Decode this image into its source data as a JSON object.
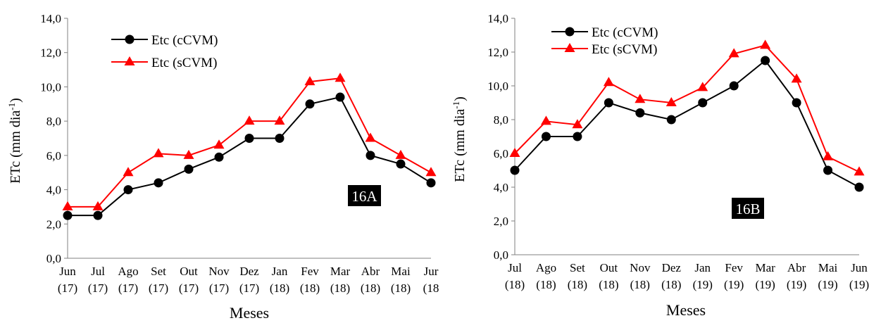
{
  "chart_data": [
    {
      "type": "line",
      "panel_label": "16A",
      "xlabel": "Meses",
      "ylabel_main": "ETc (mm dia",
      "ylabel_sup": "-1",
      "ylabel_close": ")",
      "ylim": [
        0,
        14
      ],
      "yticks": [
        "0,0",
        "2,0",
        "4,0",
        "6,0",
        "8,0",
        "10,0",
        "12,0",
        "14,0"
      ],
      "categories": [
        {
          "month": "Jun",
          "year": "(17)"
        },
        {
          "month": "Jul",
          "year": "(17)"
        },
        {
          "month": "Ago",
          "year": "(17)"
        },
        {
          "month": "Set",
          "year": "(17)"
        },
        {
          "month": "Out",
          "year": "(17)"
        },
        {
          "month": "Nov",
          "year": "(17)"
        },
        {
          "month": "Dez",
          "year": "(17)"
        },
        {
          "month": "Jan",
          "year": "(18)"
        },
        {
          "month": "Fev",
          "year": "(18)"
        },
        {
          "month": "Mar",
          "year": "(18)"
        },
        {
          "month": "Abr",
          "year": "(18)"
        },
        {
          "month": "Mai",
          "year": "(18)"
        },
        {
          "month": "Jur",
          "year": "(18"
        }
      ],
      "series": [
        {
          "name": "Etc (cCVM)",
          "color": "#000000",
          "marker": "circle",
          "values": [
            2.5,
            2.5,
            4.0,
            4.4,
            5.2,
            5.9,
            7.0,
            7.0,
            9.0,
            9.4,
            6.0,
            5.5,
            4.4
          ]
        },
        {
          "name": "Etc (sCVM)",
          "color": "#ff0000",
          "marker": "triangle",
          "values": [
            3.0,
            3.0,
            5.0,
            6.1,
            6.0,
            6.6,
            8.0,
            8.0,
            10.3,
            10.5,
            7.0,
            6.0,
            5.0
          ]
        }
      ],
      "legend_position": "top-left",
      "grid": false
    },
    {
      "type": "line",
      "panel_label": "16B",
      "xlabel": "Meses",
      "ylabel_main": "ETc (mm dia",
      "ylabel_sup": "-1",
      "ylabel_close": ")",
      "ylim": [
        0,
        14
      ],
      "yticks": [
        "0,0",
        "2,0",
        "4,0",
        "6,0",
        "8,0",
        "10,0",
        "12,0",
        "14,0"
      ],
      "categories": [
        {
          "month": "Jul",
          "year": "(18)"
        },
        {
          "month": "Ago",
          "year": "(18)"
        },
        {
          "month": "Set",
          "year": "(18)"
        },
        {
          "month": "Out",
          "year": "(18)"
        },
        {
          "month": "Nov",
          "year": "(18)"
        },
        {
          "month": "Dez",
          "year": "(18)"
        },
        {
          "month": "Jan",
          "year": "(19)"
        },
        {
          "month": "Fev",
          "year": "(19)"
        },
        {
          "month": "Mar",
          "year": "(19)"
        },
        {
          "month": "Abr",
          "year": "(19)"
        },
        {
          "month": "Mai",
          "year": "(19)"
        },
        {
          "month": "Jun",
          "year": "(19)"
        }
      ],
      "series": [
        {
          "name": "Etc (cCVM)",
          "color": "#000000",
          "marker": "circle",
          "values": [
            5.0,
            7.0,
            7.0,
            9.0,
            8.4,
            8.0,
            9.0,
            10.0,
            11.5,
            9.0,
            5.0,
            4.0
          ]
        },
        {
          "name": "Etc (sCVM)",
          "color": "#ff0000",
          "marker": "triangle",
          "values": [
            6.0,
            7.9,
            7.7,
            10.2,
            9.2,
            9.0,
            9.9,
            11.9,
            12.4,
            10.4,
            5.8,
            4.9
          ]
        }
      ],
      "legend_position": "top-left",
      "grid": false
    }
  ]
}
